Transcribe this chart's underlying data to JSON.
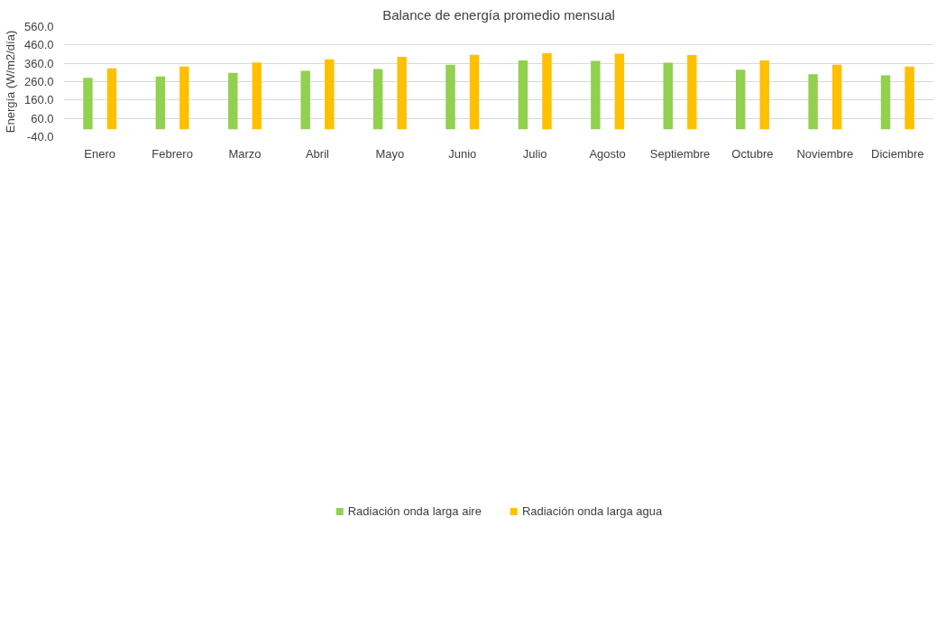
{
  "chart_data": {
    "type": "bar",
    "title": "Balance de energía promedio mensual",
    "ylabel": "Energía (W/m2/día)",
    "categories": [
      "Enero",
      "Febrero",
      "Marzo",
      "Abril",
      "Mayo",
      "Junio",
      "Julio",
      "Agosto",
      "Septiembre",
      "Octubre",
      "Noviembre",
      "Diciembre"
    ],
    "series": [
      {
        "name": "Radiación onda larga aire",
        "color": "#92d050",
        "values": [
          281,
          288,
          308,
          319,
          329,
          352,
          375,
          373,
          363,
          325,
          300,
          295
        ]
      },
      {
        "name": "Radiación onda larga agua",
        "color": "#ffc000",
        "values": [
          332,
          342,
          365,
          382,
          395,
          406,
          415,
          413,
          405,
          376,
          352,
          342
        ]
      }
    ],
    "ylim": [
      -40,
      560
    ],
    "yticks": [
      {
        "value": -40,
        "label": "-40.0"
      },
      {
        "value": 60,
        "label": "60.0"
      },
      {
        "value": 160,
        "label": "160.0"
      },
      {
        "value": 260,
        "label": "260.0"
      },
      {
        "value": 360,
        "label": "360.0"
      },
      {
        "value": 460,
        "label": "460.0"
      },
      {
        "value": 560,
        "label": "560.0"
      }
    ],
    "grid": "y",
    "legend": "bottom"
  }
}
